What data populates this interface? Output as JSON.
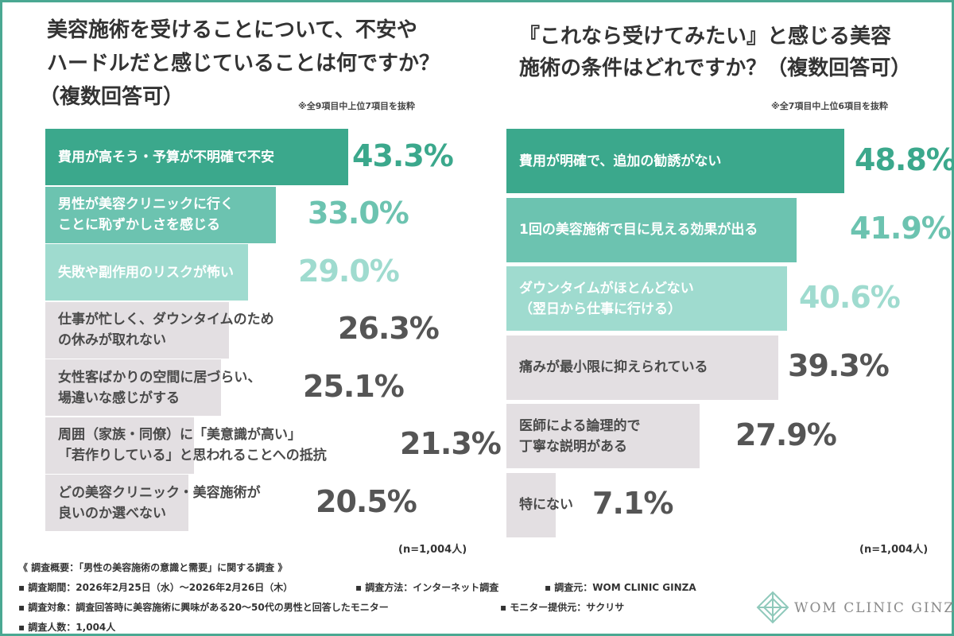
{
  "left": {
    "title_lines": [
      "美容施術を受けることについて、不安や",
      "ハードルだと感じていることは何ですか？",
      "（複数回答可）"
    ],
    "note": "※全9項目中上位7項目を抜粋",
    "n_label": "(n=1,004人)"
  },
  "right": {
    "title_lines": [
      "『これなら受けてみたい』と感じる美容",
      "施術の条件はどれですか？（複数回答可）"
    ],
    "note": "※全7項目中上位6項目を抜粋",
    "n_label": "(n=1,004人)"
  },
  "chart_data": [
    {
      "type": "bar",
      "orientation": "horizontal",
      "title": "美容施術を受けることについて、不安やハードルだと感じていることは何ですか？（複数回答可）",
      "categories": [
        "費用が高そう・予算が不明確で不安",
        "男性が美容クリニックに行くことに恥ずかしさを感じる",
        "失敗や副作用のリスクが怖い",
        "仕事が忙しく、ダウンタイムのための休みが取れない",
        "女性客ばかりの空間に居づらい、場違いな感じがする",
        "周囲（家族・同僚）に「美意識が高い」「若作りしている」と思われることへの抵抗",
        "どの美容クリニック・美容施術が良いのか選べない"
      ],
      "label_lines": [
        [
          "費用が高そう・予算が不明確で不安"
        ],
        [
          "男性が美容クリニックに行く",
          "ことに恥ずかしさを感じる"
        ],
        [
          "失敗や副作用のリスクが怖い"
        ],
        [
          "仕事が忙しく、ダウンタイムのため",
          "の休みが取れない"
        ],
        [
          "女性客ばかりの空間に居づらい、",
          "場違いな感じがする"
        ],
        [
          "周囲（家族・同僚）に「美意識が高い」",
          "「若作りしている」と思われることへの抵抗"
        ],
        [
          "どの美容クリニック・美容施術が",
          "良いのか選べない"
        ]
      ],
      "values": [
        43.3,
        33.0,
        29.0,
        26.3,
        25.1,
        21.3,
        20.5
      ],
      "value_labels": [
        "43.3%",
        "33.0%",
        "29.0%",
        "26.3%",
        "25.1%",
        "21.3%",
        "20.5%"
      ],
      "colors": [
        "#3ba88c",
        "#6cc3b0",
        "#9fdbcf",
        "#e3dfe2",
        "#e3dfe2",
        "#e3dfe2",
        "#e3dfe2"
      ],
      "value_colors": [
        "#3ba88c",
        "#6cc3b0",
        "#9fdbcf",
        "#555555",
        "#555555",
        "#555555",
        "#555555"
      ]
    },
    {
      "type": "bar",
      "orientation": "horizontal",
      "title": "『これなら受けてみたい』と感じる美容施術の条件はどれですか？（複数回答可）",
      "categories": [
        "費用が明確で、追加の勧誘がない",
        "1回の美容施術で目に見える効果が出る",
        "ダウンタイムがほとんどない（翌日から仕事に行ける）",
        "痛みが最小限に抑えられている",
        "医師による論理的で丁寧な説明がある",
        "特にない"
      ],
      "label_lines": [
        [
          "費用が明確で、追加の勧誘がない"
        ],
        [
          "1回の美容施術で目に見える効果が出る"
        ],
        [
          "ダウンタイムがほとんどない",
          "（翌日から仕事に行ける）"
        ],
        [
          "痛みが最小限に抑えられている"
        ],
        [
          "医師による論理的で",
          "丁寧な説明がある"
        ],
        [
          "特にない"
        ]
      ],
      "values": [
        48.8,
        41.9,
        40.6,
        39.3,
        27.9,
        7.1
      ],
      "value_labels": [
        "48.8%",
        "41.9%",
        "40.6%",
        "39.3%",
        "27.9%",
        "7.1%"
      ],
      "colors": [
        "#3ba88c",
        "#6cc3b0",
        "#9fdbcf",
        "#e3dfe2",
        "#e3dfe2",
        "#e3dfe2"
      ],
      "value_colors": [
        "#3ba88c",
        "#6cc3b0",
        "#9fdbcf",
        "#555555",
        "#555555",
        "#555555"
      ]
    }
  ],
  "footer": {
    "summary": "《 調査概要：「男性の美容施術の意識と需要」に関する調査 》",
    "period": "▪ 調査期間：2026年2月25日（水）〜2026年2月26日（木）",
    "method": "▪ 調査方法：インターネット調査",
    "source": "▪ 調査元：WOM CLINIC GINZA",
    "target": "▪ 調査対象：調査回答時に美容施術に興味がある20〜50代の男性と回答したモニター",
    "provider": "▪ モニター提供元：サクリサ",
    "count": "▪ 調査人数：1,004人"
  },
  "logo": {
    "text": "WOM CLINIC GINZA",
    "icon": "diamond-lattice-icon",
    "color": "#8fc9bb"
  }
}
